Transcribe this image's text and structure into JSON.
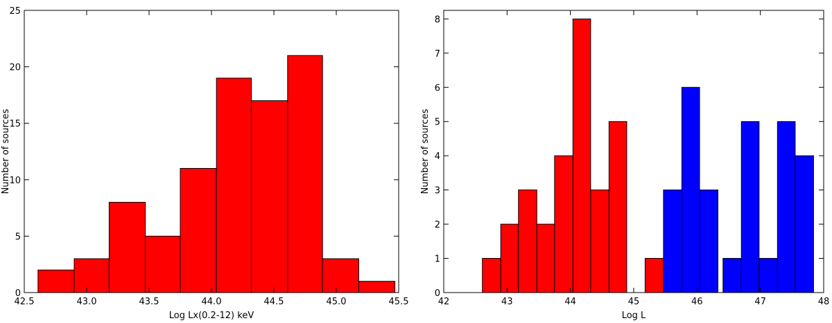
{
  "chart_data": [
    {
      "type": "histogram",
      "xlabel": "Log Lx(0.2-12) keV",
      "ylabel": "Number of sources",
      "bins": [
        42.61,
        42.9,
        43.18,
        43.47,
        43.75,
        44.04,
        44.32,
        44.61,
        44.89,
        45.18,
        45.47
      ],
      "values": [
        2,
        3,
        8,
        5,
        11,
        19,
        17,
        21,
        3,
        1
      ],
      "color": "#ff0000",
      "xlim": [
        42.5,
        45.5
      ],
      "xticks": [
        42.5,
        {
          "value": 43,
          "label": "43.0"
        },
        43.5,
        {
          "value": 44,
          "label": "44.0"
        },
        44.5,
        {
          "value": 45,
          "label": "45.0"
        },
        45.5
      ],
      "ylim": [
        0,
        25
      ],
      "yticks": [
        0,
        5,
        10,
        15,
        20,
        25
      ]
    },
    {
      "type": "histogram",
      "xlabel": "Log L",
      "ylabel": "Number of sources",
      "series": [
        {
          "color": "#ff0000",
          "bins": [
            42.61,
            42.9,
            43.18,
            43.47,
            43.75,
            44.04,
            44.32,
            44.61,
            44.89,
            45.18,
            45.47
          ],
          "values": [
            1,
            2,
            3,
            2,
            4,
            8,
            3,
            5,
            0,
            1
          ]
        },
        {
          "color": "#0000ff",
          "bins": [
            45.47,
            45.76,
            46.04,
            46.33,
            46.41,
            46.7,
            46.98,
            47.27,
            47.55,
            47.84
          ],
          "values": [
            3,
            6,
            3,
            0,
            1,
            5,
            1,
            5,
            4
          ]
        }
      ],
      "xlim": [
        42,
        48
      ],
      "xticks": [
        42,
        43,
        44,
        45,
        46,
        47,
        48
      ],
      "ylim": [
        0,
        8.25
      ],
      "yticks": [
        0,
        1,
        2,
        3,
        4,
        5,
        6,
        7,
        8
      ]
    }
  ]
}
